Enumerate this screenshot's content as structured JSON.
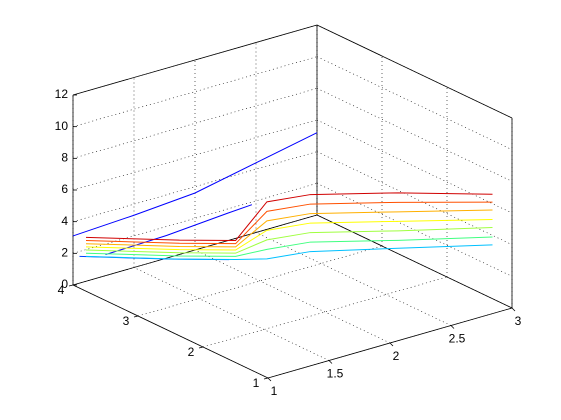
{
  "chart_data": {
    "type": "line3d",
    "xlim": [
      1,
      3
    ],
    "xticks": [
      1,
      1.5,
      2,
      2.5,
      3
    ],
    "ylim": [
      1,
      4
    ],
    "yticks": [
      1,
      2,
      3,
      4
    ],
    "zlim": [
      0,
      12
    ],
    "zticks": [
      0,
      2,
      4,
      6,
      8,
      10,
      12
    ],
    "grid": true,
    "series": [
      {
        "color": "#0000ff",
        "x": [
          1,
          1.5,
          2,
          3
        ],
        "y": [
          4,
          4,
          4,
          4
        ],
        "z": [
          3.1,
          3.3,
          3.6,
          5.2
        ]
      },
      {
        "color": "#0000ff",
        "x": [
          1,
          1.5,
          2,
          2.2
        ],
        "y": [
          3.5,
          3.5,
          3.5,
          3.5
        ],
        "z": [
          2.9,
          3.0,
          3.3,
          3.4
        ]
      },
      {
        "color": "#0040ff",
        "x": [
          1,
          1.5,
          1.8
        ],
        "y": [
          3.9,
          3.4,
          3.1
        ],
        "z": [
          2.0,
          1.7,
          1.6
        ]
      },
      {
        "color": "#00c0ff",
        "x": [
          1,
          1.5,
          1.8,
          1.95,
          2.2,
          2.6,
          3
        ],
        "y": [
          3.8,
          3.3,
          3.0,
          2.8,
          2.6,
          2.0,
          1.3
        ],
        "z": [
          2.2,
          1.9,
          1.8,
          1.9,
          2.2,
          2.7,
          3.4
        ]
      },
      {
        "color": "#40ff80",
        "x": [
          1,
          1.5,
          1.8,
          1.95,
          2.2,
          2.6,
          3
        ],
        "y": [
          3.8,
          3.3,
          3.0,
          2.8,
          2.6,
          2.0,
          1.3
        ],
        "z": [
          2.4,
          2.1,
          2.0,
          2.5,
          2.8,
          3.2,
          3.9
        ]
      },
      {
        "color": "#a0ff40",
        "x": [
          1,
          1.5,
          1.8,
          1.95,
          2.2,
          2.6,
          3
        ],
        "y": [
          3.8,
          3.3,
          3.0,
          2.8,
          2.6,
          2.0,
          1.3
        ],
        "z": [
          2.6,
          2.3,
          2.2,
          3.1,
          3.4,
          3.8,
          4.5
        ]
      },
      {
        "color": "#ffff00",
        "x": [
          1,
          1.5,
          1.8,
          1.95,
          2.2,
          2.6,
          3
        ],
        "y": [
          3.8,
          3.3,
          3.0,
          2.8,
          2.6,
          2.0,
          1.3
        ],
        "z": [
          2.8,
          2.5,
          2.4,
          3.7,
          4.0,
          4.4,
          5.0
        ]
      },
      {
        "color": "#ffb000",
        "x": [
          1,
          1.5,
          1.8,
          1.95,
          2.2,
          2.6,
          3
        ],
        "y": [
          3.8,
          3.3,
          3.0,
          2.8,
          2.6,
          2.0,
          1.3
        ],
        "z": [
          3.0,
          2.7,
          2.6,
          4.3,
          4.6,
          5.0,
          5.6
        ]
      },
      {
        "color": "#ff5000",
        "x": [
          1,
          1.5,
          1.8,
          1.95,
          2.2,
          2.6,
          3
        ],
        "y": [
          3.8,
          3.3,
          3.0,
          2.8,
          2.6,
          2.0,
          1.3
        ],
        "z": [
          3.2,
          2.9,
          2.8,
          4.9,
          5.2,
          5.6,
          6.1
        ]
      },
      {
        "color": "#d00000",
        "x": [
          1,
          1.5,
          1.8,
          1.95,
          2.2,
          2.6,
          3
        ],
        "y": [
          3.8,
          3.3,
          3.0,
          2.8,
          2.6,
          2.0,
          1.3
        ],
        "z": [
          3.4,
          3.1,
          3.0,
          5.5,
          5.8,
          6.2,
          6.6
        ]
      }
    ]
  }
}
